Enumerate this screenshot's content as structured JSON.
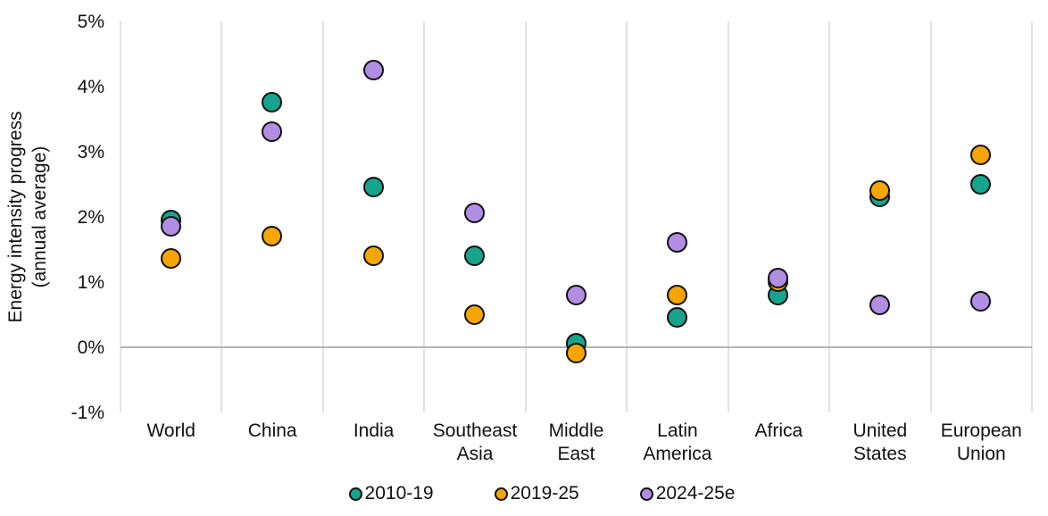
{
  "chart_data": {
    "type": "scatter",
    "title": "",
    "ylabel_line1": "Energy intensity progress",
    "ylabel_line2": "(annual average)",
    "categories": [
      "World",
      "China",
      "India",
      "Southeast Asia",
      "Middle East",
      "Latin America",
      "Africa",
      "United States",
      "European Union"
    ],
    "category_label_lines": [
      [
        "World"
      ],
      [
        "China"
      ],
      [
        "India"
      ],
      [
        "Southeast",
        "Asia"
      ],
      [
        "Middle",
        "East"
      ],
      [
        "Latin",
        "America"
      ],
      [
        "Africa"
      ],
      [
        "United",
        "States"
      ],
      [
        "European",
        "Union"
      ]
    ],
    "series": [
      {
        "name": "2010-19",
        "color": "#17A48C",
        "values": [
          1.95,
          3.75,
          2.45,
          1.4,
          0.05,
          0.45,
          0.8,
          2.3,
          2.5
        ]
      },
      {
        "name": "2019-25",
        "color": "#F5A604",
        "values": [
          1.35,
          1.7,
          1.4,
          0.5,
          -0.1,
          0.8,
          1.0,
          2.4,
          2.95
        ]
      },
      {
        "name": "2024-25e",
        "color": "#B18EE3",
        "values": [
          1.85,
          3.3,
          4.25,
          2.05,
          0.8,
          1.6,
          1.05,
          0.65,
          0.7
        ]
      }
    ],
    "y_ticks": [
      {
        "label": "5%",
        "value": 5
      },
      {
        "label": "4%",
        "value": 4
      },
      {
        "label": "3%",
        "value": 3
      },
      {
        "label": "2%",
        "value": 2
      },
      {
        "label": "1%",
        "value": 1
      },
      {
        "label": "0%",
        "value": 0
      },
      {
        "label": "-1%",
        "value": -1
      }
    ],
    "ylim": [
      -1,
      5
    ],
    "grid": "vertical-column-separators-and-zero-line",
    "legend_position": "bottom",
    "colors": {
      "series_2010_19": "#17A48C",
      "series_2019_25": "#F5A604",
      "series_2024_25e": "#B18EE3",
      "marker_outline": "#0f0f0f",
      "gridline": "#e3e3e3",
      "zero_line": "#b3b3b3",
      "text": "#111111"
    }
  }
}
